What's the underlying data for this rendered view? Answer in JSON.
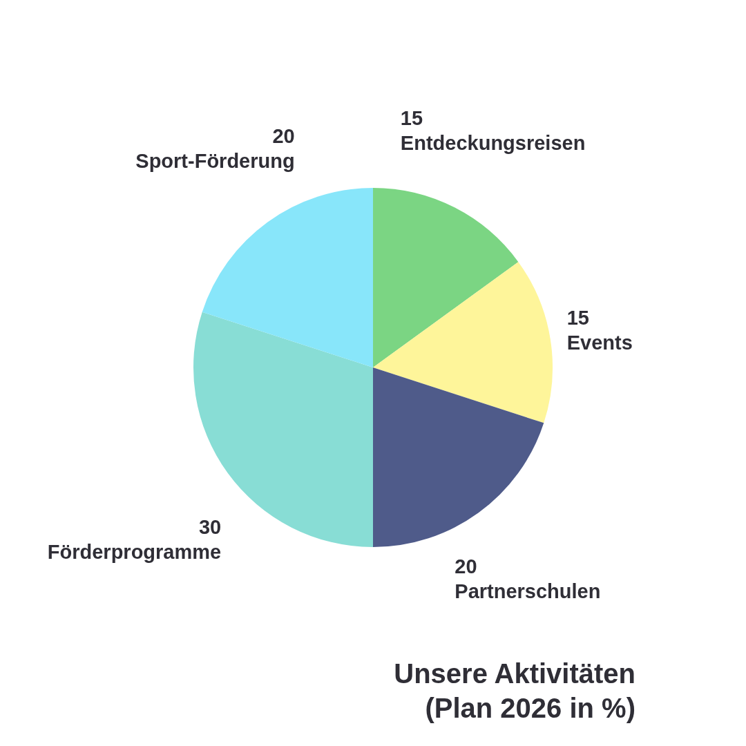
{
  "chart_data": {
    "type": "pie",
    "title": "Unsere Aktivitäten",
    "subtitle": "(Plan 2026 in %)",
    "categories": [
      "Entdeckungsreisen",
      "Events",
      "Partnerschulen",
      "Förderprogramme",
      "Sport-Förderung"
    ],
    "values": [
      15,
      15,
      20,
      30,
      20
    ],
    "colors": [
      "#7bd583",
      "#fef59a",
      "#4f5b8a",
      "#88ddd5",
      "#88e6fa"
    ],
    "data_labels": true
  }
}
